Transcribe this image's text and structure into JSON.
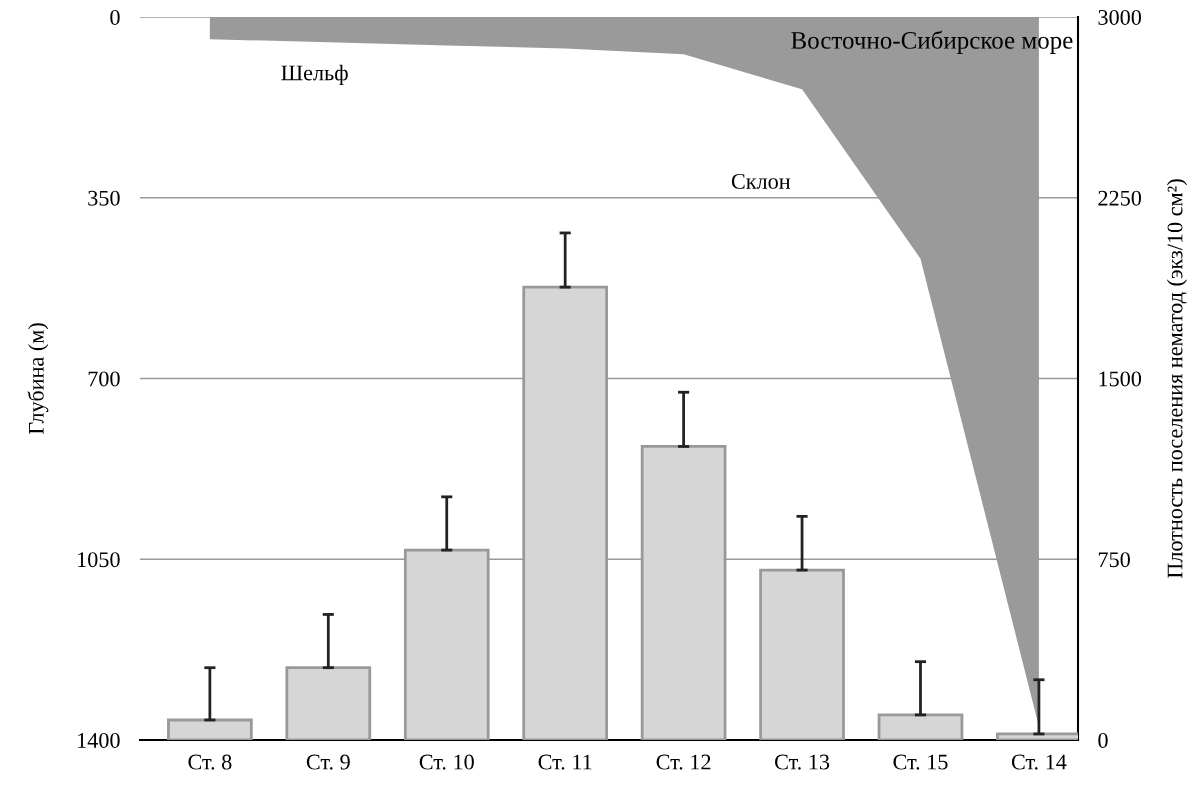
{
  "chart_data": {
    "type": "bar",
    "categories": [
      "Ст. 8",
      "Ст. 9",
      "Ст. 10",
      "Ст. 11",
      "Ст. 12",
      "Ст. 13",
      "Ст. 15",
      "Ст. 14"
    ],
    "ylabel": "Глубина (м)",
    "y2label": "Плотность поселения нематод (экз/10 см²)",
    "ylim": [
      1400,
      0
    ],
    "yticks": [
      0,
      350,
      700,
      1050,
      1400
    ],
    "y2lim": [
      0,
      3000
    ],
    "y2ticks": [
      0,
      750,
      1500,
      2250,
      3000
    ],
    "grid": "y",
    "series": [
      {
        "type": "area",
        "color": "#9a9a9a",
        "values": [
          43,
          49,
          55,
          61,
          72,
          140,
          468,
          1374
        ]
      },
      {
        "axis": "y2",
        "color": "#d6d6d6",
        "values": [
          83,
          300,
          788,
          1879,
          1218,
          705,
          104,
          25
        ],
        "errors": [
          [
            83,
            300
          ],
          [
            300,
            521
          ],
          [
            788,
            1009
          ],
          [
            1879,
            2104
          ],
          [
            1218,
            1443
          ],
          [
            705,
            928
          ],
          [
            104,
            325
          ],
          [
            25,
            250
          ]
        ]
      }
    ],
    "annotations": [
      "Шельф",
      "Склон",
      "Восточно-Сибирское море"
    ]
  }
}
